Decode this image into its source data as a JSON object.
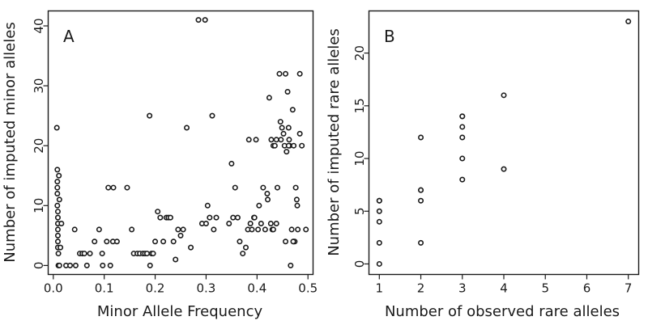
{
  "chart_data": [
    {
      "type": "scatter",
      "panel_label": "A",
      "xlabel": "Minor Allele Frequency",
      "ylabel": "Number of imputed minor alleles",
      "xlim": [
        -0.01,
        0.51
      ],
      "ylim": [
        -1.5,
        42.5
      ],
      "xticks": [
        0.0,
        0.1,
        0.2,
        0.3,
        0.4,
        0.5
      ],
      "xtick_labels": [
        "0.0",
        "0.1",
        "0.2",
        "0.3",
        "0.4",
        "0.5"
      ],
      "yticks": [
        0,
        10,
        20,
        30,
        40
      ],
      "ytick_labels": [
        "0",
        "10",
        "20",
        "30",
        "40"
      ],
      "grid": false,
      "series": [
        {
          "marker": "open-circle",
          "x": [
            0.007,
            0.008,
            0.008,
            0.008,
            0.008,
            0.008,
            0.009,
            0.009,
            0.009,
            0.009,
            0.009,
            0.009,
            0.009,
            0.01,
            0.01,
            0.011,
            0.012,
            0.016,
            0.014,
            0.012,
            0.025,
            0.033,
            0.042,
            0.044,
            0.052,
            0.057,
            0.061,
            0.066,
            0.072,
            0.081,
            0.09,
            0.096,
            0.097,
            0.105,
            0.108,
            0.112,
            0.117,
            0.118,
            0.125,
            0.145,
            0.154,
            0.158,
            0.165,
            0.17,
            0.176,
            0.18,
            0.184,
            0.189,
            0.19,
            0.193,
            0.196,
            0.2,
            0.205,
            0.21,
            0.216,
            0.222,
            0.226,
            0.23,
            0.236,
            0.24,
            0.245,
            0.25,
            0.255,
            0.262,
            0.27,
            0.285,
            0.292,
            0.298,
            0.303,
            0.307,
            0.312,
            0.315,
            0.32,
            0.3,
            0.345,
            0.35,
            0.353,
            0.357,
            0.362,
            0.366,
            0.372,
            0.378,
            0.382,
            0.384,
            0.387,
            0.39,
            0.394,
            0.398,
            0.402,
            0.408,
            0.412,
            0.416,
            0.42,
            0.424,
            0.428,
            0.43,
            0.432,
            0.435,
            0.438,
            0.44,
            0.444,
            0.446,
            0.449,
            0.452,
            0.454,
            0.456,
            0.458,
            0.46,
            0.462,
            0.464,
            0.466,
            0.468,
            0.47,
            0.472,
            0.474,
            0.476,
            0.478,
            0.48,
            0.484,
            0.488,
            0.496,
            0.484,
            0.472,
            0.463,
            0.456,
            0.447,
            0.438,
            0.432,
            0.427,
            0.462,
            0.471,
            0.479,
            0.404,
            0.395,
            0.421
          ],
          "y": [
            23,
            16,
            14,
            13,
            12,
            10,
            9,
            8,
            7,
            6,
            5,
            4,
            3,
            2,
            0,
            15,
            11,
            7,
            3,
            0,
            0,
            0,
            6,
            0,
            2,
            2,
            2,
            0,
            2,
            4,
            6,
            2,
            0,
            4,
            13,
            0,
            4,
            13,
            4,
            13,
            6,
            2,
            2,
            2,
            2,
            2,
            2,
            25,
            0,
            2,
            2,
            4,
            9,
            8,
            4,
            8,
            8,
            8,
            4,
            1,
            6,
            5,
            6,
            23,
            3,
            41,
            7,
            41,
            10,
            8,
            25,
            6,
            8,
            7,
            7,
            17,
            8,
            13,
            8,
            4,
            2,
            3,
            6,
            21,
            7,
            6,
            8,
            21,
            6,
            7,
            13,
            6,
            12,
            28,
            21,
            6,
            20,
            20,
            21,
            13,
            32,
            24,
            23,
            22,
            20,
            32,
            19,
            29,
            23,
            20,
            0,
            6,
            26,
            4,
            4,
            13,
            11,
            6,
            22,
            20,
            6,
            32,
            20,
            21,
            4,
            21,
            7,
            6,
            7,
            20,
            4,
            10,
            10,
            8,
            11
          ]
        }
      ]
    },
    {
      "type": "scatter",
      "panel_label": "B",
      "xlabel": "Number of observed rare alleles",
      "ylabel": "Number of imputed rare alleles",
      "xlim": [
        0.75,
        7.25
      ],
      "ylim": [
        -1.0,
        24.0
      ],
      "xticks": [
        1,
        2,
        3,
        4,
        5,
        6,
        7
      ],
      "xtick_labels": [
        "1",
        "2",
        "3",
        "4",
        "5",
        "6",
        "7"
      ],
      "yticks": [
        0,
        5,
        10,
        15,
        20
      ],
      "ytick_labels": [
        "0",
        "5",
        "10",
        "15",
        "20"
      ],
      "grid": false,
      "series": [
        {
          "marker": "open-circle",
          "x": [
            1,
            1,
            1,
            1,
            1,
            1,
            2,
            2,
            2,
            2,
            2,
            3,
            3,
            3,
            3,
            3,
            3,
            4,
            4,
            7
          ],
          "y": [
            0,
            2,
            4,
            5,
            6,
            6,
            2,
            6,
            7,
            7,
            12,
            8,
            10,
            12,
            13,
            14,
            14,
            9,
            16,
            23
          ]
        }
      ]
    }
  ]
}
